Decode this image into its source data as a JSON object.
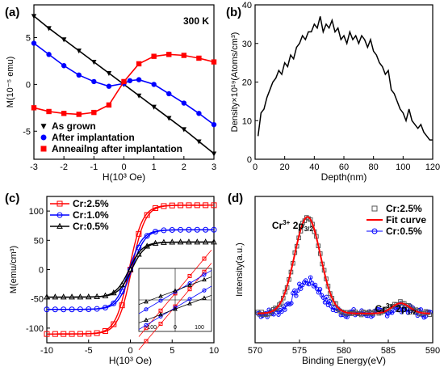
{
  "chart_data": [
    {
      "panel": "(a)",
      "type": "scatter",
      "annotation": "300 K",
      "xlabel": "H(10³ Oe)",
      "ylabel": "M(10⁻⁵ emu)",
      "xlim": [
        -3,
        3
      ],
      "ylim": [
        -8,
        8.5
      ],
      "xticks": [
        -3,
        -2,
        -1,
        0,
        1,
        2,
        3
      ],
      "yticks": [
        -5,
        0,
        5
      ],
      "legend_position": "bottom-left",
      "series": [
        {
          "name": "As grown",
          "color": "#000000",
          "marker": "triangle-down",
          "x": [
            -3,
            -2.5,
            -2,
            -1.5,
            -1,
            -0.5,
            0,
            0.5,
            1,
            1.5,
            2,
            2.5,
            3
          ],
          "y": [
            7.3,
            6.0,
            4.8,
            3.6,
            2.4,
            1.2,
            0,
            -1.2,
            -2.4,
            -3.6,
            -4.8,
            -6.1,
            -7.4
          ]
        },
        {
          "name": "After implantation",
          "color": "#0000ff",
          "marker": "circle",
          "x": [
            -3,
            -2.5,
            -2,
            -1.5,
            -1,
            -0.5,
            0,
            0.2,
            0.5,
            1,
            1.5,
            2,
            2.5,
            3
          ],
          "y": [
            4.4,
            3.2,
            2.0,
            1.0,
            0.3,
            -0.2,
            0.1,
            0.4,
            0.5,
            0.0,
            -1.0,
            -2.0,
            -3.1,
            -4.3
          ]
        },
        {
          "name": "Anneailng after implantation",
          "color": "#ff0000",
          "marker": "square",
          "x": [
            -3,
            -2.5,
            -2,
            -1.5,
            -1,
            -0.5,
            0,
            0.5,
            1,
            1.5,
            2,
            2.5,
            3
          ],
          "y": [
            -2.5,
            -2.9,
            -3.1,
            -3.2,
            -3.0,
            -2.2,
            0.3,
            2.2,
            3.0,
            3.2,
            3.1,
            2.8,
            2.4
          ]
        }
      ]
    },
    {
      "panel": "(b)",
      "type": "line",
      "xlabel": "Depth(nm)",
      "ylabel": "Density×10¹⁹(Atoms/cm³)",
      "xlim": [
        0,
        120
      ],
      "ylim": [
        0,
        40
      ],
      "xticks": [
        0,
        20,
        40,
        60,
        80,
        100,
        120
      ],
      "yticks": [
        0,
        10,
        20,
        30,
        40
      ],
      "series": [
        {
          "color": "#000000",
          "x": [
            2,
            4,
            6,
            8,
            10,
            12,
            14,
            16,
            18,
            20,
            22,
            24,
            26,
            28,
            30,
            32,
            34,
            36,
            38,
            40,
            42,
            44,
            46,
            48,
            50,
            52,
            54,
            56,
            58,
            60,
            62,
            64,
            66,
            68,
            70,
            72,
            74,
            76,
            78,
            80,
            82,
            84,
            86,
            88,
            90,
            92,
            94,
            96,
            98,
            100,
            102,
            104,
            106,
            108,
            110,
            112,
            114,
            116,
            118,
            120
          ],
          "y": [
            6,
            12,
            13,
            16,
            18,
            20,
            21,
            23,
            22,
            25,
            24,
            27,
            26,
            29,
            30,
            32,
            31,
            33,
            33,
            35,
            34,
            37,
            33,
            35,
            34,
            36,
            33,
            34,
            31,
            32,
            30,
            33,
            31,
            32,
            30,
            32,
            31,
            29,
            31,
            28,
            27,
            25,
            24,
            22,
            23,
            18,
            17,
            15,
            13,
            12,
            10,
            13,
            10,
            9,
            8,
            9,
            7,
            6,
            5,
            5
          ]
        }
      ]
    },
    {
      "panel": "(c)",
      "type": "line",
      "xlabel": "H(10³ Oe)",
      "ylabel": "M(emu/cm³)",
      "xlim": [
        -10,
        10
      ],
      "ylim": [
        -125,
        125
      ],
      "xticks": [
        -10,
        -5,
        0,
        5,
        10
      ],
      "yticks": [
        -100,
        -50,
        0,
        50,
        100
      ],
      "legend_position": "top-left",
      "inset_xticks": [
        "-100",
        "0",
        "100"
      ],
      "series": [
        {
          "name": "Cr:2.5%",
          "color": "#ff0000",
          "marker": "square",
          "Ms": 110
        },
        {
          "name": "Cr:1.0%",
          "color": "#0000ff",
          "marker": "circle",
          "Ms": 68
        },
        {
          "name": "Cr:0.5%",
          "color": "#000000",
          "marker": "triangle-up",
          "Ms": 47
        }
      ]
    },
    {
      "panel": "(d)",
      "type": "line",
      "xlabel": "Binding Energy(eV)",
      "ylabel": "Intensity(a.u.)",
      "xlim": [
        570,
        590
      ],
      "xticks": [
        570,
        575,
        580,
        585,
        590
      ],
      "legend_position": "top-right",
      "peak_labels": [
        {
          "base": "Cr",
          "sup": "3+",
          "rest": " 2p",
          "sub": "3/2"
        },
        {
          "base": "Cr",
          "sup": "3+",
          "rest": " 2p",
          "sub": "1/2"
        }
      ],
      "series": [
        {
          "name": "Cr:2.5%",
          "color": "#555555",
          "marker": "square-open"
        },
        {
          "name": "Fit curve",
          "color": "#ff0000",
          "marker": "line"
        },
        {
          "name": "Cr:0.5%",
          "color": "#0000ff",
          "marker": "circle-open"
        }
      ]
    }
  ]
}
